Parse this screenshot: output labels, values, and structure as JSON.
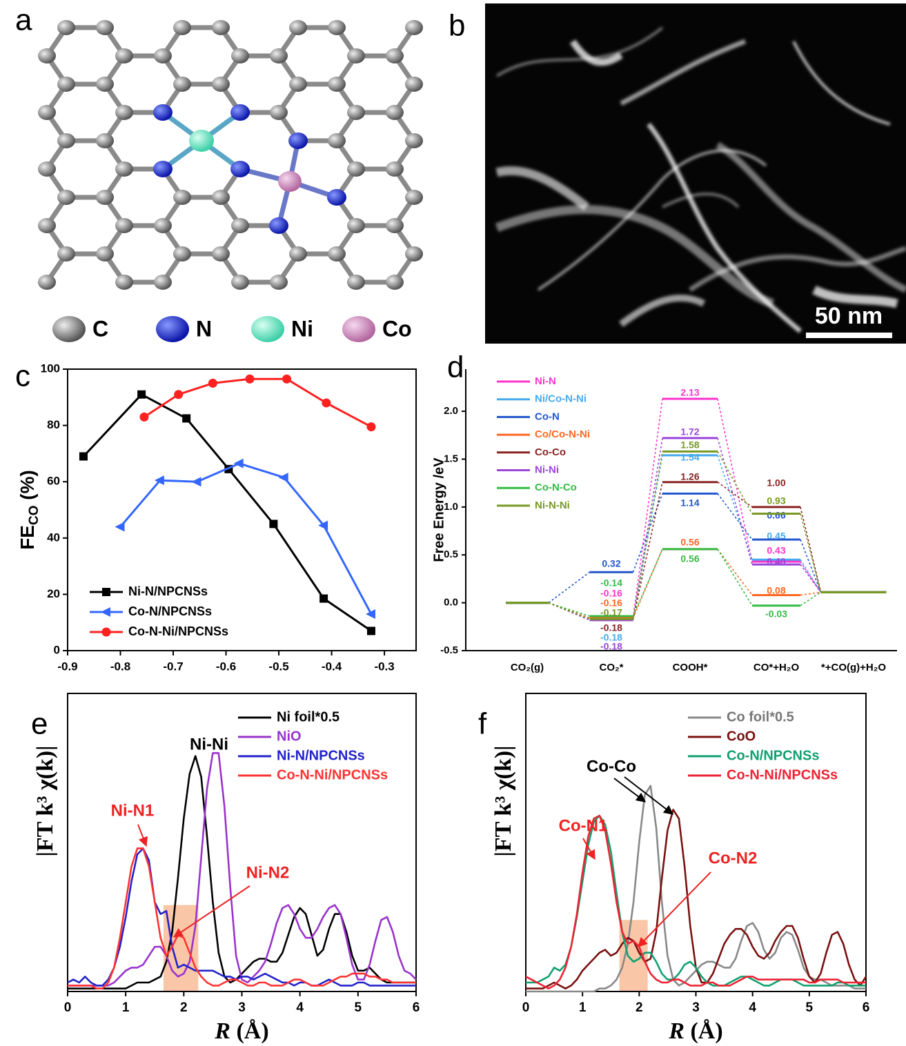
{
  "panel_a": {
    "label": "a",
    "legend": [
      "C",
      "N",
      "Ni",
      "Co"
    ]
  },
  "panel_b": {
    "label": "b",
    "scale_bar": "50 nm"
  },
  "chart_data": [
    {
      "type": "line",
      "label": "c",
      "ylabel": [
        "FE",
        "CO",
        " (%)"
      ],
      "xlim": [
        -0.9,
        -0.24
      ],
      "ylim": [
        0,
        100
      ],
      "xticks": [
        -0.9,
        -0.8,
        -0.7,
        -0.6,
        -0.5,
        -0.4,
        -0.3
      ],
      "yticks": [
        0,
        20,
        40,
        60,
        80,
        100
      ],
      "legend": "lower left",
      "series": [
        {
          "name": "Ni-N/NPCNSs",
          "color": "#000000",
          "marker": "square",
          "x": [
            -0.87,
            -0.76,
            -0.675,
            -0.595,
            -0.51,
            -0.415,
            -0.325
          ],
          "values": [
            69,
            91,
            82.5,
            64.5,
            45,
            18.5,
            7
          ]
        },
        {
          "name": "Co-N/NPCNSs",
          "color": "#3366ff",
          "marker": "triangle-left",
          "x": [
            -0.8,
            -0.725,
            -0.655,
            -0.575,
            -0.49,
            -0.415,
            -0.325
          ],
          "values": [
            44,
            60.5,
            60,
            66.5,
            61.5,
            44.5,
            13
          ]
        },
        {
          "name": "Co-N-Ni/NPCNSs",
          "color": "#ff2020",
          "marker": "circle",
          "x": [
            -0.755,
            -0.69,
            -0.625,
            -0.555,
            -0.485,
            -0.41,
            -0.325
          ],
          "values": [
            83,
            91,
            95,
            96.5,
            96.5,
            88,
            79.5
          ]
        }
      ]
    },
    {
      "type": "energy",
      "label": "d",
      "ylabel": "Free Energy /eV",
      "categories": [
        "CO₂(g)",
        "CO₂*",
        "COOH*",
        "CO*+H₂O",
        "*+CO(g)+H₂O"
      ],
      "ylim": [
        -0.5,
        2.44
      ],
      "yticks": [
        -0.5,
        {
          "value": 0,
          "label": "0.0"
        },
        0.5,
        {
          "value": 1,
          "label": "1.0"
        },
        1.5,
        {
          "value": 2,
          "label": "2.0"
        }
      ],
      "legend": "upper left",
      "series": [
        {
          "name": "Ni-N",
          "color": "#ff33cc",
          "values": [
            0,
            -0.16,
            2.13,
            0.43,
            0.11
          ],
          "value_labels": [
            null,
            "-0.16",
            "2.13",
            "0.43",
            null
          ]
        },
        {
          "name": "Ni/Co-N-Ni",
          "color": "#44aaee",
          "values": [
            0,
            -0.18,
            1.54,
            0.45,
            0.11
          ],
          "value_labels": [
            null,
            "-0.18",
            "1.54",
            "0.45",
            null
          ]
        },
        {
          "name": "Co-N",
          "color": "#2255cc",
          "values": [
            0,
            0.32,
            1.14,
            0.66,
            0.11
          ],
          "value_labels": [
            null,
            "0.32",
            "1.14",
            "0.66",
            null
          ]
        },
        {
          "name": "Co/Co-N-Ni",
          "color": "#ff6622",
          "values": [
            0,
            -0.16,
            0.56,
            0.08,
            0.11
          ],
          "value_labels": [
            null,
            "-0.16",
            "0.56",
            "0.08",
            null
          ]
        },
        {
          "name": "Co-Co",
          "color": "#882222",
          "values": [
            0,
            -0.18,
            1.26,
            1.0,
            0.11
          ],
          "value_labels": [
            null,
            "-0.18",
            "1.26",
            "1.00",
            null
          ]
        },
        {
          "name": "Ni-Ni",
          "color": "#9944dd",
          "values": [
            0,
            -0.18,
            1.72,
            0.4,
            0.11
          ],
          "value_labels": [
            null,
            "-0.18",
            "1.72",
            "0.40",
            null
          ]
        },
        {
          "name": "Co-N-Co",
          "color": "#33bb44",
          "values": [
            0,
            -0.14,
            0.56,
            -0.03,
            0.11
          ],
          "value_labels": [
            null,
            "-0.14",
            "0.56",
            "-0.03",
            null
          ]
        },
        {
          "name": "Ni-N-Ni",
          "color": "#779922",
          "values": [
            0,
            -0.17,
            1.58,
            0.93,
            0.11
          ],
          "value_labels": [
            null,
            "-0.17",
            "1.58",
            "0.93",
            null
          ]
        }
      ]
    },
    {
      "type": "line",
      "label": "e",
      "xlabel": [
        "R",
        " (Å)"
      ],
      "ylabel": "|FT k³ χ(k)|",
      "xlim": [
        0,
        6
      ],
      "ylim": [
        0,
        100
      ],
      "xticks": [
        0,
        1,
        2,
        3,
        4,
        5,
        6
      ],
      "legend": "upper right",
      "annotations": [
        "Ni-Ni",
        "Ni-N1",
        "Ni-N2"
      ],
      "x": [
        0,
        0.1,
        0.2,
        0.3,
        0.4,
        0.5,
        0.6,
        0.7,
        0.8,
        0.9,
        1,
        1.1,
        1.2,
        1.3,
        1.4,
        1.5,
        1.6,
        1.7,
        1.8,
        1.9,
        2,
        2.1,
        2.2,
        2.3,
        2.4,
        2.5,
        2.6,
        2.7,
        2.8,
        2.9,
        3,
        3.1,
        3.2,
        3.3,
        3.4,
        3.5,
        3.6,
        3.7,
        3.8,
        3.9,
        4,
        4.1,
        4.2,
        4.3,
        4.4,
        4.5,
        4.6,
        4.7,
        4.8,
        4.9,
        5,
        5.1,
        5.2,
        5.3,
        5.4,
        5.5,
        5.6,
        5.7,
        5.8,
        5.9,
        6
      ],
      "series": [
        {
          "name": "Ni foil*0.5",
          "color": "#000000",
          "values": [
            1,
            1,
            1,
            1,
            1,
            1,
            1,
            1,
            1,
            1,
            1,
            2,
            3,
            3,
            3,
            4,
            5,
            10,
            20,
            38,
            58,
            73,
            79,
            72,
            52,
            30,
            13,
            5,
            3,
            4,
            6,
            8,
            10,
            11,
            11,
            10,
            10,
            13,
            19,
            25,
            28,
            26,
            19,
            12,
            14,
            21,
            26,
            26,
            20,
            12,
            7,
            7,
            8,
            6,
            4,
            3,
            3,
            3,
            3,
            3,
            3
          ]
        },
        {
          "name": "NiO",
          "color": "#9933cc",
          "values": [
            2,
            2,
            2,
            2,
            2,
            2,
            2,
            2,
            3,
            5,
            7,
            8,
            8,
            9,
            12,
            15,
            15,
            12,
            7,
            5,
            6,
            10,
            22,
            45,
            68,
            80,
            80,
            62,
            35,
            12,
            4,
            3,
            5,
            7,
            10,
            16,
            23,
            28,
            29,
            26,
            21,
            18,
            18,
            21,
            25,
            28,
            29,
            26,
            18,
            9,
            4,
            4,
            9,
            17,
            24,
            25,
            20,
            12,
            7,
            6,
            4
          ]
        },
        {
          "name": "Ni-N/NPCNSs",
          "color": "#2222cc",
          "values": [
            3,
            4,
            3,
            5,
            3,
            2,
            2,
            4,
            8,
            15,
            25,
            37,
            46,
            48,
            44,
            30,
            26,
            27,
            15,
            8,
            9,
            8,
            7,
            7,
            7,
            7,
            6,
            5,
            5,
            4,
            5,
            5,
            4,
            5,
            6,
            5,
            4,
            3,
            3,
            2,
            3,
            3,
            2,
            2,
            3,
            4,
            3,
            2,
            2,
            2,
            3,
            3,
            2,
            2,
            2,
            2,
            2,
            2,
            2,
            2,
            2
          ]
        },
        {
          "name": "Co-N-Ni/NPCNSs",
          "color": "#ff3333",
          "values": [
            2,
            2,
            2,
            2,
            2,
            1,
            1,
            3,
            8,
            18,
            30,
            42,
            48,
            48,
            42,
            30,
            18,
            12,
            15,
            19,
            18,
            13,
            8,
            5,
            3,
            2,
            2,
            3,
            4,
            4,
            3,
            2,
            2,
            3,
            3,
            2,
            2,
            2,
            3,
            4,
            4,
            3,
            2,
            2,
            2,
            3,
            4,
            5,
            5,
            6,
            6,
            6,
            5,
            5,
            4,
            4,
            3,
            3,
            3,
            3,
            3
          ]
        }
      ]
    },
    {
      "type": "line",
      "label": "f",
      "xlabel": [
        "R",
        " (Å)"
      ],
      "ylabel": "|FT k³ χ(k)|",
      "xlim": [
        0,
        6
      ],
      "ylim": [
        0,
        100
      ],
      "xticks": [
        0,
        1,
        2,
        3,
        4,
        5,
        6
      ],
      "legend": "upper right",
      "annotations": [
        "Co-Co",
        "Co-N1",
        "Co-N2"
      ],
      "x": [
        0,
        0.1,
        0.2,
        0.3,
        0.4,
        0.5,
        0.6,
        0.7,
        0.8,
        0.9,
        1,
        1.1,
        1.2,
        1.3,
        1.4,
        1.5,
        1.6,
        1.7,
        1.8,
        1.9,
        2,
        2.1,
        2.2,
        2.3,
        2.4,
        2.5,
        2.6,
        2.7,
        2.8,
        2.9,
        3,
        3.1,
        3.2,
        3.3,
        3.4,
        3.5,
        3.6,
        3.7,
        3.8,
        3.9,
        4,
        4.1,
        4.2,
        4.3,
        4.4,
        4.5,
        4.6,
        4.7,
        4.8,
        4.9,
        5,
        5.1,
        5.2,
        5.3,
        5.4,
        5.5,
        5.6,
        5.7,
        5.8,
        5.9,
        6
      ],
      "series": [
        {
          "name": "Co foil*0.5",
          "color": "#888888",
          "values": [
            0,
            0,
            0,
            0,
            0,
            0,
            0,
            0,
            0,
            0,
            0,
            0,
            0,
            1,
            1,
            2,
            4,
            8,
            16,
            30,
            50,
            66,
            69,
            55,
            30,
            12,
            4,
            2,
            3,
            5,
            7,
            9,
            10,
            10,
            9,
            8,
            8,
            11,
            17,
            22,
            23,
            20,
            14,
            11,
            13,
            18,
            20,
            19,
            14,
            8,
            5,
            4,
            4,
            3,
            2,
            2,
            2,
            2,
            1,
            1,
            1
          ]
        },
        {
          "name": "CoO",
          "color": "#7a1010",
          "values": [
            1,
            1,
            1,
            1,
            2,
            3,
            2,
            1,
            2,
            4,
            7,
            9,
            11,
            13,
            14,
            12,
            13,
            16,
            18,
            17,
            13,
            10,
            11,
            20,
            38,
            54,
            61,
            58,
            42,
            22,
            8,
            3,
            3,
            6,
            11,
            16,
            19,
            21,
            21,
            19,
            15,
            12,
            11,
            13,
            17,
            20,
            22,
            22,
            18,
            11,
            5,
            3,
            6,
            13,
            19,
            20,
            16,
            9,
            4,
            2,
            5
          ]
        },
        {
          "name": "Co-N/NPCNSs",
          "color": "#10a070",
          "values": [
            3,
            3,
            3,
            4,
            5,
            8,
            7,
            9,
            15,
            25,
            37,
            49,
            57,
            59,
            56,
            47,
            33,
            20,
            12,
            10,
            11,
            13,
            13,
            10,
            6,
            4,
            4,
            6,
            9,
            10,
            8,
            5,
            3,
            2,
            2,
            2,
            3,
            4,
            5,
            5,
            4,
            3,
            2,
            2,
            3,
            4,
            4,
            4,
            3,
            2,
            2,
            2,
            2,
            2,
            2,
            3,
            3,
            2,
            2,
            2,
            2
          ]
        },
        {
          "name": "Co-N-Ni/NPCNSs",
          "color": "#ee2233",
          "values": [
            5,
            4,
            3,
            2,
            1,
            2,
            4,
            8,
            15,
            26,
            40,
            52,
            58,
            59,
            54,
            43,
            30,
            20,
            16,
            17,
            15,
            10,
            6,
            4,
            3,
            3,
            4,
            4,
            3,
            2,
            2,
            2,
            3,
            3,
            2,
            2,
            2,
            3,
            4,
            5,
            5,
            4,
            4,
            4,
            4,
            4,
            4,
            4,
            4,
            4,
            3,
            3,
            4,
            4,
            4,
            4,
            3,
            3,
            3,
            3,
            3
          ]
        }
      ]
    }
  ]
}
